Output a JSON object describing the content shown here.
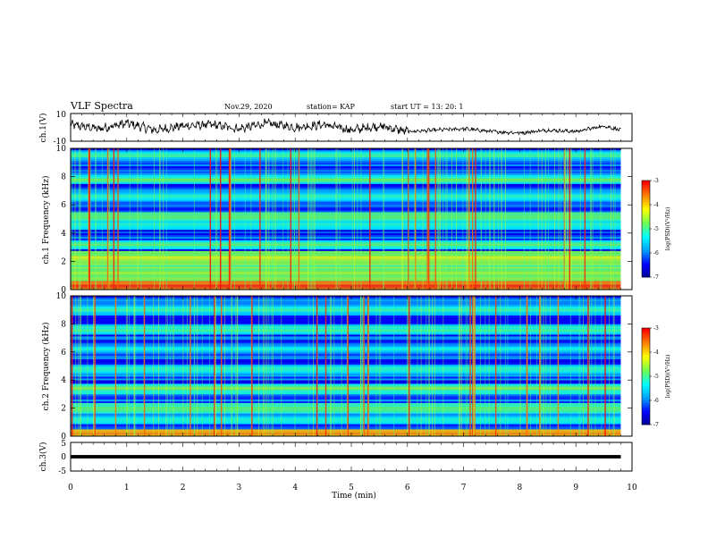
{
  "header": {
    "title": "VLF Spectra",
    "date": "Nov.29, 2020",
    "station": "station= KAP",
    "start": "start  UT =   13: 20: 1"
  },
  "colors": {
    "background": "#ffffff",
    "axes": "#000000",
    "trace": "#000000",
    "colormap": [
      "#00008f",
      "#0000ff",
      "#00a0ff",
      "#00ffff",
      "#70ff50",
      "#ffff00",
      "#ff8000",
      "#ff0000",
      "#ffffff"
    ]
  },
  "chart_data": [
    {
      "type": "line",
      "panel": "ch1-waveform",
      "ylabel": "ch.1(V)",
      "ylim": [
        -10,
        10
      ],
      "yticklabels": [
        "10",
        "-10"
      ],
      "xlim": [
        0,
        10
      ],
      "description_values": "amplitude ~ -5..+5 V, quieter after 6 min",
      "x": [
        0,
        0.5,
        1.0,
        1.5,
        2.0,
        2.5,
        3.0,
        3.5,
        4.0,
        4.5,
        5.0,
        5.5,
        6.0,
        6.5,
        7.0,
        7.5,
        8.0,
        8.5,
        9.0,
        9.5,
        9.8
      ],
      "y": [
        2,
        -1,
        3,
        -2,
        1,
        2,
        -1,
        3,
        0,
        2,
        -2,
        1,
        -3,
        -2,
        -1,
        -3,
        -4,
        -2,
        -3,
        1,
        -2
      ]
    },
    {
      "type": "heatmap",
      "panel": "ch1-spectrogram",
      "ylabel": "ch.1 Frequency (kHz)",
      "ylim": [
        0,
        10
      ],
      "yticks": [
        0,
        2,
        4,
        6,
        8,
        10
      ],
      "xlim": [
        0,
        10
      ],
      "colorbar": {
        "label": "log(PSD)(V²/Hz)",
        "range": [
          -7,
          -3
        ],
        "ticks": [
          -3,
          -4,
          -5,
          -6,
          -7
        ]
      },
      "bands_khz": [
        {
          "f": 0.3,
          "level": -3.2
        },
        {
          "f": 1.2,
          "level": -4.5
        },
        {
          "f": 2.2,
          "level": -4.2
        },
        {
          "f": 3.2,
          "level": -4.8
        },
        {
          "f": 4.6,
          "level": -5.0
        },
        {
          "f": 5.2,
          "level": -4.6
        },
        {
          "f": 6.6,
          "level": -5.0
        },
        {
          "f": 7.8,
          "level": -4.8
        },
        {
          "f": 9.5,
          "level": -5.0
        }
      ]
    },
    {
      "type": "heatmap",
      "panel": "ch2-spectrogram",
      "ylabel": "ch.2 Frequency (kHz)",
      "ylim": [
        0,
        10
      ],
      "yticks": [
        0,
        2,
        4,
        6,
        8,
        10
      ],
      "xlim": [
        0,
        10
      ],
      "colorbar": {
        "label": "log(PSD)(V²/Hz)",
        "range": [
          -7,
          -3
        ],
        "ticks": [
          -3,
          -4,
          -5,
          -6,
          -7
        ]
      },
      "bands_khz": [
        {
          "f": 0.2,
          "level": -3.5
        },
        {
          "f": 1.2,
          "level": -5.0
        },
        {
          "f": 2.0,
          "level": -4.6
        },
        {
          "f": 3.4,
          "level": -4.6
        },
        {
          "f": 4.8,
          "level": -5.0
        },
        {
          "f": 6.2,
          "level": -5.2
        },
        {
          "f": 7.6,
          "level": -4.8
        },
        {
          "f": 9.0,
          "level": -5.0
        }
      ]
    },
    {
      "type": "line",
      "panel": "ch3-waveform",
      "ylabel": "ch.3(V)",
      "ylim": [
        -5,
        5
      ],
      "yticklabels": [
        "5",
        "0",
        "-5"
      ],
      "xlim": [
        0,
        10
      ],
      "xlabel": "Time  (min)",
      "xticks": [
        0,
        1,
        2,
        3,
        4,
        5,
        6,
        7,
        8,
        9,
        10
      ],
      "x": [
        0,
        9.8
      ],
      "y": [
        0,
        0
      ],
      "band_halfwidth_v": 0.6
    }
  ]
}
